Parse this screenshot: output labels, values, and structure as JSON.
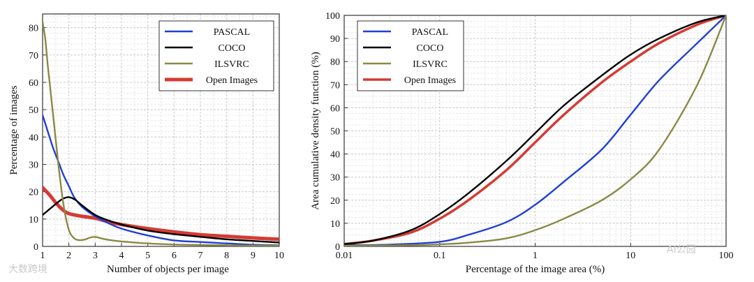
{
  "chart_data": [
    {
      "type": "line",
      "title": "",
      "xlabel": "Number of objects per image",
      "ylabel": "Percentage of images",
      "xlim": [
        1,
        10
      ],
      "ylim": [
        0,
        85
      ],
      "xticks": [
        "1",
        "2",
        "3",
        "4",
        "5",
        "6",
        "7",
        "8",
        "9",
        "10"
      ],
      "yticks": [
        "0",
        "10",
        "20",
        "30",
        "40",
        "50",
        "60",
        "70",
        "80"
      ],
      "grid": true,
      "legend_position": "top-right",
      "series": [
        {
          "name": "PASCAL",
          "color": "#1f3fd6",
          "width": 2.4,
          "x": [
            1,
            1.2,
            1.4,
            1.6,
            1.8,
            2,
            2.2,
            2.5,
            3,
            3.5,
            4,
            5,
            6,
            7,
            8,
            9,
            10
          ],
          "y": [
            48,
            42,
            36,
            31,
            26,
            22,
            18,
            14.5,
            11,
            8.5,
            6.5,
            4,
            2.2,
            1.6,
            1.1,
            0.6,
            0.4
          ]
        },
        {
          "name": "COCO",
          "color": "#000000",
          "width": 2.4,
          "x": [
            1,
            1.25,
            1.5,
            1.75,
            2,
            2.25,
            2.5,
            3,
            3.5,
            4,
            5,
            6,
            7,
            8,
            9,
            10
          ],
          "y": [
            11.5,
            13.5,
            15.5,
            17.3,
            18,
            17,
            15,
            11.5,
            9.5,
            8,
            5.8,
            4.5,
            3.5,
            2.6,
            2,
            1.4
          ]
        },
        {
          "name": "ILSVRC",
          "color": "#8a8a45",
          "width": 2.4,
          "x": [
            1,
            1.1,
            1.2,
            1.4,
            1.6,
            1.8,
            2,
            2.2,
            2.4,
            2.6,
            2.8,
            3,
            3.2,
            3.5,
            4,
            5,
            6,
            7,
            8,
            9,
            10
          ],
          "y": [
            82,
            76,
            66,
            48,
            30,
            15,
            6,
            3,
            2.3,
            2.5,
            3.2,
            3.5,
            3,
            2.4,
            1.8,
            1.1,
            0.7,
            0.5,
            0.4,
            0.3,
            0.3
          ]
        },
        {
          "name": "Open Images",
          "color": "#d43b33",
          "width": 5,
          "x": [
            1,
            1.25,
            1.5,
            1.75,
            2,
            2.5,
            3,
            3.5,
            4,
            5,
            6,
            7,
            8,
            9,
            10
          ],
          "y": [
            21.5,
            19,
            16,
            13.5,
            12,
            11,
            10.3,
            9,
            8,
            6.5,
            5.3,
            4.3,
            3.7,
            3.1,
            2.6
          ]
        }
      ]
    },
    {
      "type": "line",
      "title": "",
      "xlabel": "Percentage of the image area (%)",
      "ylabel": "Area cumulative density function (%)",
      "xscale": "log",
      "xlim": [
        0.01,
        100
      ],
      "ylim": [
        0,
        100
      ],
      "xticks": [
        "0.01",
        "0.1",
        "1",
        "10",
        "100"
      ],
      "yticks": [
        "0",
        "10",
        "20",
        "30",
        "40",
        "50",
        "60",
        "70",
        "80",
        "90",
        "100"
      ],
      "grid": true,
      "legend_position": "top-left",
      "series": [
        {
          "name": "PASCAL",
          "color": "#1f3fd6",
          "width": 2.4,
          "x": [
            0.01,
            0.03,
            0.1,
            0.2,
            0.5,
            1,
            2,
            5,
            10,
            20,
            50,
            100
          ],
          "y": [
            0.5,
            0.8,
            2,
            5,
            10.5,
            18,
            28,
            42,
            57,
            72,
            88,
            100
          ]
        },
        {
          "name": "COCO",
          "color": "#000000",
          "width": 2.4,
          "x": [
            0.01,
            0.02,
            0.05,
            0.1,
            0.2,
            0.5,
            1,
            2,
            5,
            10,
            20,
            50,
            100
          ],
          "y": [
            1,
            2.5,
            7,
            14,
            23,
            37,
            49,
            61,
            74,
            83,
            90,
            97,
            100
          ]
        },
        {
          "name": "ILSVRC",
          "color": "#8a8a45",
          "width": 2.4,
          "x": [
            0.01,
            0.05,
            0.1,
            0.2,
            0.5,
            1,
            2,
            5,
            10,
            20,
            50,
            100
          ],
          "y": [
            0.3,
            0.5,
            0.9,
            1.6,
            3.5,
            7,
            12,
            20,
            29,
            42,
            70,
            100
          ]
        },
        {
          "name": "Open Images",
          "color": "#d43b33",
          "width": 3.5,
          "x": [
            0.01,
            0.02,
            0.05,
            0.1,
            0.2,
            0.5,
            1,
            2,
            5,
            10,
            20,
            50,
            100
          ],
          "y": [
            1,
            2.5,
            6,
            12,
            20,
            33,
            45,
            57,
            71,
            80,
            88,
            96,
            100
          ]
        }
      ]
    }
  ],
  "watermarks": [
    "大数跨境",
    "AI公园"
  ]
}
